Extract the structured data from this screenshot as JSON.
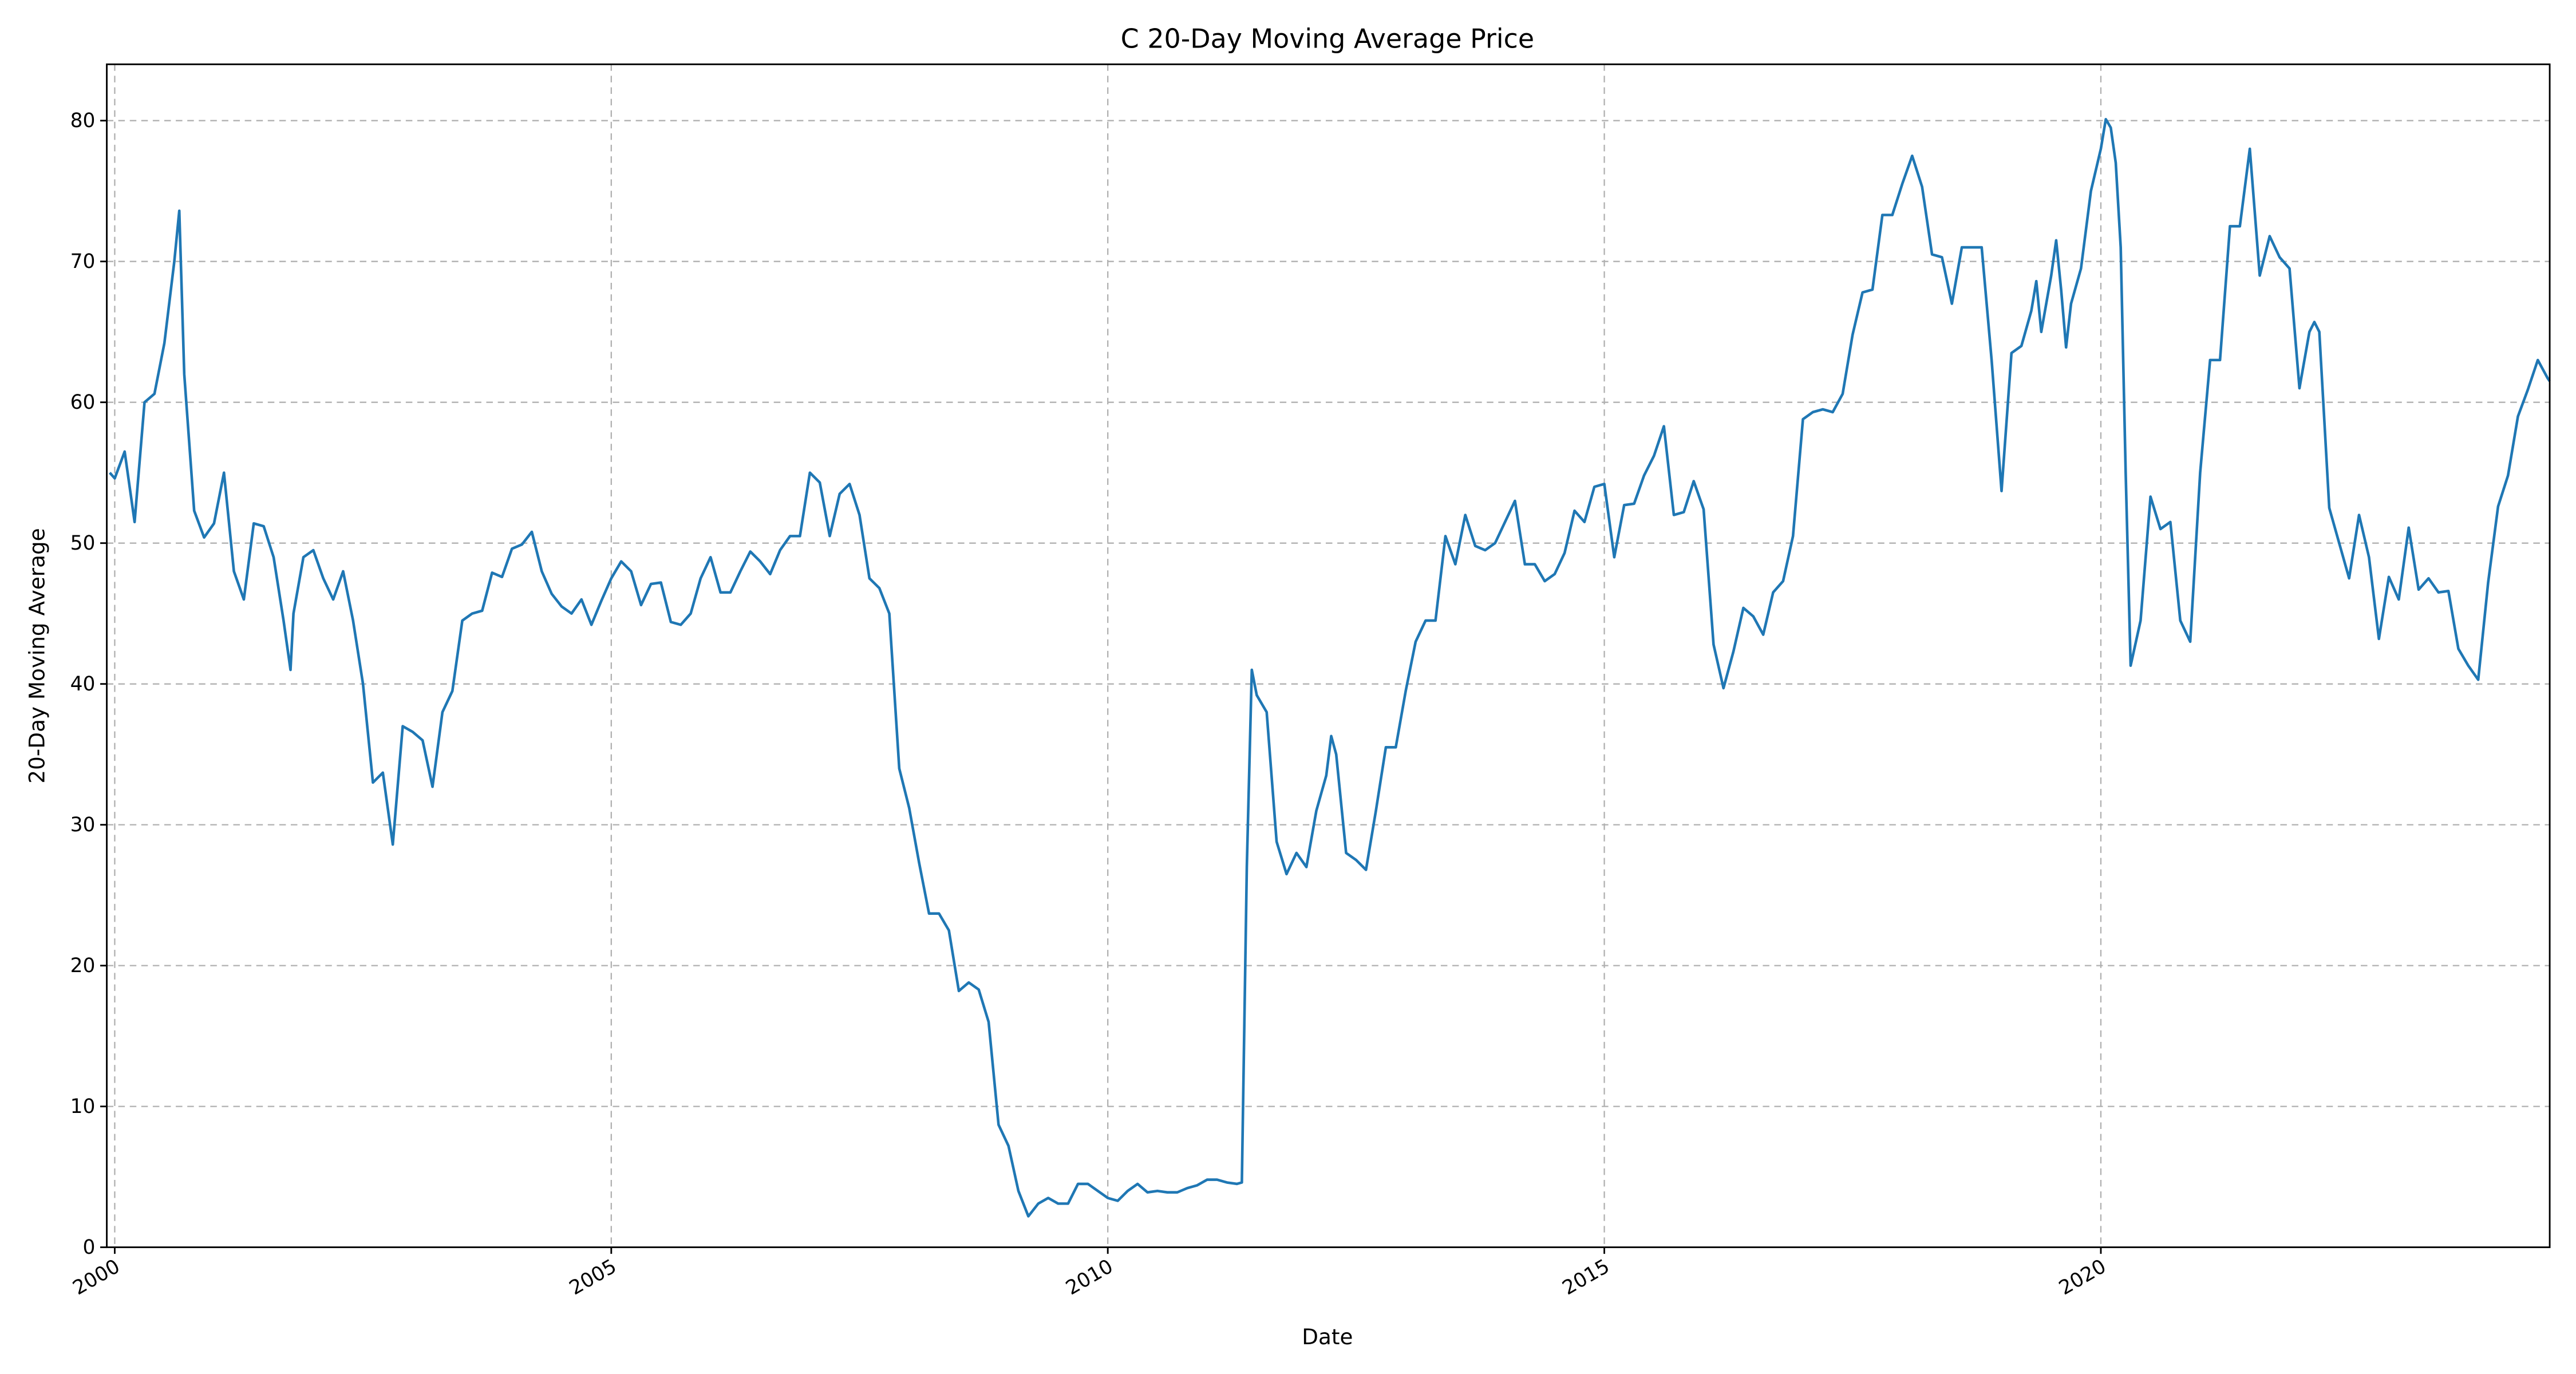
{
  "chart_data": {
    "type": "line",
    "title": "C 20-Day Moving Average Price",
    "x_label": "Date",
    "y_label": "20-Day Moving Average",
    "x": [
      1999.95,
      2000.0,
      2000.1,
      2000.2,
      2000.3,
      2000.4,
      2000.5,
      2000.6,
      2000.65,
      2000.7,
      2000.8,
      2000.9,
      2001.0,
      2001.1,
      2001.2,
      2001.3,
      2001.4,
      2001.5,
      2001.6,
      2001.7,
      2001.77,
      2001.8,
      2001.9,
      2002.0,
      2002.1,
      2002.2,
      2002.3,
      2002.4,
      2002.5,
      2002.6,
      2002.7,
      2002.8,
      2002.9,
      2003.0,
      2003.1,
      2003.2,
      2003.3,
      2003.4,
      2003.5,
      2003.6,
      2003.7,
      2003.8,
      2003.9,
      2004.0,
      2004.1,
      2004.2,
      2004.3,
      2004.4,
      2004.5,
      2004.6,
      2004.7,
      2004.8,
      2004.9,
      2005.0,
      2005.1,
      2005.2,
      2005.3,
      2005.4,
      2005.5,
      2005.6,
      2005.7,
      2005.8,
      2005.9,
      2006.0,
      2006.1,
      2006.2,
      2006.3,
      2006.4,
      2006.5,
      2006.6,
      2006.7,
      2006.8,
      2006.9,
      2007.0,
      2007.1,
      2007.2,
      2007.3,
      2007.4,
      2007.5,
      2007.6,
      2007.7,
      2007.8,
      2007.9,
      2008.0,
      2008.1,
      2008.2,
      2008.3,
      2008.4,
      2008.5,
      2008.6,
      2008.7,
      2008.8,
      2008.9,
      2009.0,
      2009.1,
      2009.2,
      2009.3,
      2009.4,
      2009.5,
      2009.6,
      2009.7,
      2009.8,
      2009.9,
      2010.0,
      2010.1,
      2010.2,
      2010.3,
      2010.4,
      2010.5,
      2010.6,
      2010.7,
      2010.8,
      2010.9,
      2011.0,
      2011.1,
      2011.2,
      2011.3,
      2011.35,
      2011.4,
      2011.45,
      2011.5,
      2011.6,
      2011.7,
      2011.8,
      2011.9,
      2012.0,
      2012.1,
      2012.2,
      2012.25,
      2012.3,
      2012.4,
      2012.5,
      2012.6,
      2012.7,
      2012.8,
      2012.9,
      2013.0,
      2013.1,
      2013.2,
      2013.3,
      2013.4,
      2013.5,
      2013.6,
      2013.7,
      2013.8,
      2013.9,
      2014.0,
      2014.1,
      2014.2,
      2014.3,
      2014.4,
      2014.5,
      2014.6,
      2014.7,
      2014.8,
      2014.9,
      2015.0,
      2015.1,
      2015.2,
      2015.3,
      2015.4,
      2015.5,
      2015.6,
      2015.7,
      2015.8,
      2015.9,
      2016.0,
      2016.1,
      2016.2,
      2016.3,
      2016.4,
      2016.5,
      2016.6,
      2016.7,
      2016.8,
      2016.9,
      2017.0,
      2017.1,
      2017.2,
      2017.3,
      2017.4,
      2017.5,
      2017.6,
      2017.7,
      2017.8,
      2017.9,
      2018.0,
      2018.1,
      2018.2,
      2018.3,
      2018.4,
      2018.5,
      2018.6,
      2018.7,
      2018.8,
      2018.9,
      2019.0,
      2019.1,
      2019.2,
      2019.3,
      2019.35,
      2019.4,
      2019.5,
      2019.55,
      2019.6,
      2019.65,
      2019.7,
      2019.8,
      2019.9,
      2020.0,
      2020.05,
      2020.1,
      2020.15,
      2020.2,
      2020.25,
      2020.3,
      2020.4,
      2020.5,
      2020.6,
      2020.7,
      2020.8,
      2020.9,
      2021.0,
      2021.1,
      2021.2,
      2021.3,
      2021.4,
      2021.5,
      2021.6,
      2021.7,
      2021.8,
      2021.9,
      2022.0,
      2022.1,
      2022.15,
      2022.2,
      2022.3,
      2022.4,
      2022.5,
      2022.6,
      2022.7,
      2022.8,
      2022.9,
      2023.0,
      2023.1,
      2023.2,
      2023.3,
      2023.4,
      2023.5,
      2023.6,
      2023.7,
      2023.8,
      2023.9,
      2024.0,
      2024.1,
      2024.2,
      2024.3,
      2024.4,
      2024.5,
      2024.52
    ],
    "series": [
      {
        "name": "20-Day Moving Average",
        "color": "#1f77b4",
        "values": [
          55,
          54.6,
          56.5,
          51.5,
          60,
          60.6,
          64.2,
          70,
          73.6,
          62,
          52.3,
          50.4,
          51.4,
          55,
          48,
          46,
          51.4,
          51.2,
          49,
          44.5,
          41,
          45,
          49,
          49.5,
          47.5,
          46,
          48,
          44.5,
          40,
          33,
          33.7,
          28.6,
          37,
          36.6,
          36,
          32.7,
          38,
          39.5,
          44.5,
          45,
          45.2,
          47.9,
          47.6,
          49.6,
          49.9,
          50.8,
          48,
          46.4,
          45.5,
          45,
          46,
          44.2,
          45.9,
          47.5,
          48.7,
          48,
          45.6,
          47.1,
          47.2,
          44.4,
          44.2,
          45,
          47.5,
          49,
          46.5,
          46.5,
          48,
          49.4,
          48.7,
          47.8,
          49.5,
          50.5,
          50.5,
          55,
          54.3,
          50.5,
          53.5,
          54.2,
          52,
          47.5,
          46.8,
          45,
          34,
          31.2,
          27.3,
          23.7,
          23.7,
          22.5,
          18.2,
          18.8,
          18.3,
          16,
          8.7,
          7.2,
          4,
          2.2,
          3.1,
          3.5,
          3.1,
          3.1,
          4.5,
          4.5,
          4,
          3.5,
          3.3,
          4,
          4.5,
          3.9,
          4,
          3.9,
          3.9,
          4.2,
          4.4,
          4.8,
          4.8,
          4.6,
          4.5,
          4.6,
          27,
          41,
          39.2,
          38,
          28.8,
          26.5,
          28,
          27,
          31,
          33.5,
          36.3,
          35,
          28,
          27.5,
          26.8,
          31,
          35.5,
          35.5,
          39.5,
          43,
          44.5,
          44.5,
          50.5,
          48.5,
          52,
          49.8,
          49.5,
          50,
          51.5,
          53,
          48.5,
          48.5,
          47.3,
          47.8,
          49.3,
          52.3,
          51.5,
          54,
          54.2,
          49,
          52.7,
          52.8,
          54.8,
          56.2,
          58.3,
          52,
          52.2,
          54.4,
          52.4,
          42.8,
          39.7,
          42.3,
          45.4,
          44.8,
          43.5,
          46.5,
          47.3,
          50.5,
          58.8,
          59.3,
          59.5,
          59.3,
          60.6,
          64.8,
          67.8,
          68,
          73.3,
          73.3,
          75.5,
          77.5,
          75.3,
          70.5,
          70.3,
          67,
          71,
          71,
          71,
          63,
          53.7,
          63.5,
          64,
          66.5,
          68.6,
          65,
          69,
          71.5,
          68,
          63.9,
          67,
          69.5,
          75,
          78,
          80.1,
          79.5,
          77,
          71,
          55,
          41.3,
          44.5,
          53.3,
          51,
          51.5,
          44.5,
          43,
          55,
          63,
          63,
          72.5,
          72.5,
          78,
          69,
          71.8,
          70.3,
          69.5,
          61,
          65,
          65.7,
          65,
          52.5,
          50,
          47.5,
          52,
          49,
          43.2,
          47.6,
          46,
          51.1,
          46.7,
          47.5,
          46.5,
          46.6,
          42.5,
          41.3,
          40.3,
          47.2,
          52.6,
          54.8,
          59,
          60.9,
          63,
          61.7,
          61.5
        ]
      }
    ],
    "xlim": [
      1999.92,
      2024.52
    ],
    "xticks": [
      2000,
      2005,
      2010,
      2015,
      2020
    ],
    "ylim": [
      0,
      84
    ],
    "yticks": [
      0,
      10,
      20,
      30,
      40,
      50,
      60,
      70,
      80
    ],
    "grid": true
  }
}
